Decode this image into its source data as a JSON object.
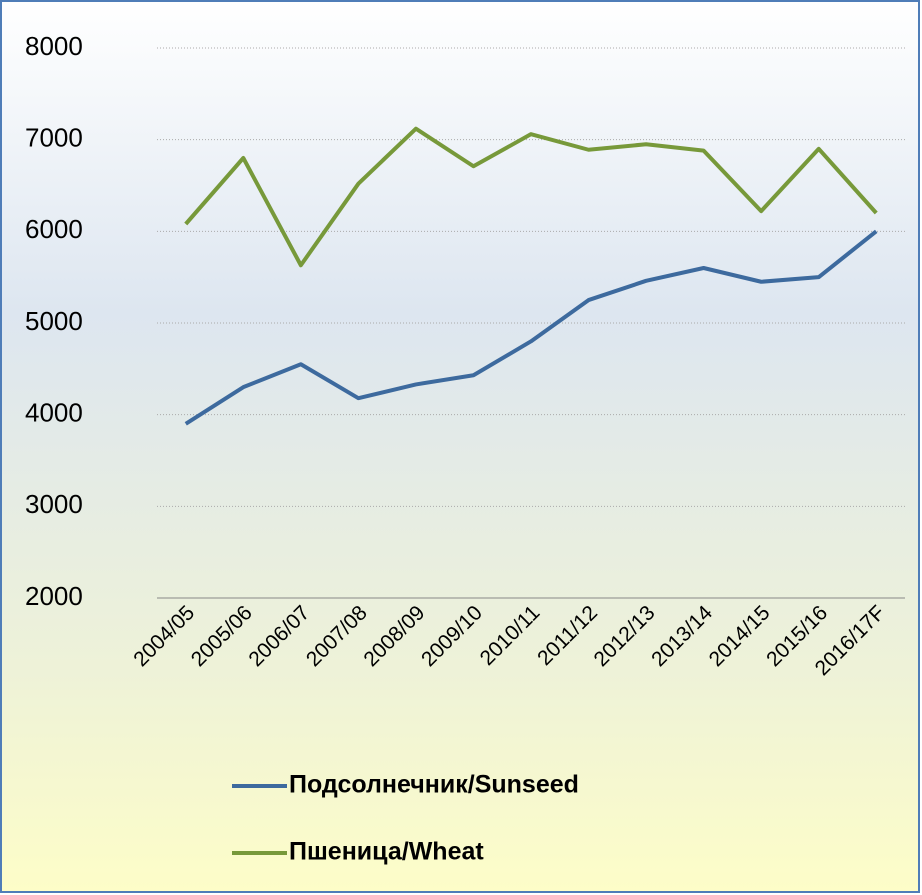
{
  "chart_data": {
    "type": "line",
    "categories": [
      "2004/05",
      "2005/06",
      "2006/07",
      "2007/08",
      "2008/09",
      "2009/10",
      "2010/11",
      "2011/12",
      "2012/13",
      "2013/14",
      "2014/15",
      "2015/16",
      "2016/17F"
    ],
    "series": [
      {
        "name": "Подсолнечник/Sunseed",
        "color": "#3d6a9e",
        "values": [
          3900,
          4300,
          4550,
          4180,
          4330,
          4430,
          4800,
          5250,
          5460,
          5600,
          5450,
          5500,
          6000
        ]
      },
      {
        "name": "Пшеница/Wheat",
        "color": "#77993a",
        "values": [
          6080,
          6800,
          5630,
          6520,
          7120,
          6710,
          7060,
          6890,
          6950,
          6880,
          6220,
          6900,
          6200
        ]
      }
    ],
    "ylim": [
      2000,
      8000
    ],
    "yticks": [
      2000,
      3000,
      4000,
      5000,
      6000,
      7000,
      8000
    ],
    "grid": true,
    "legend": "bottom"
  }
}
